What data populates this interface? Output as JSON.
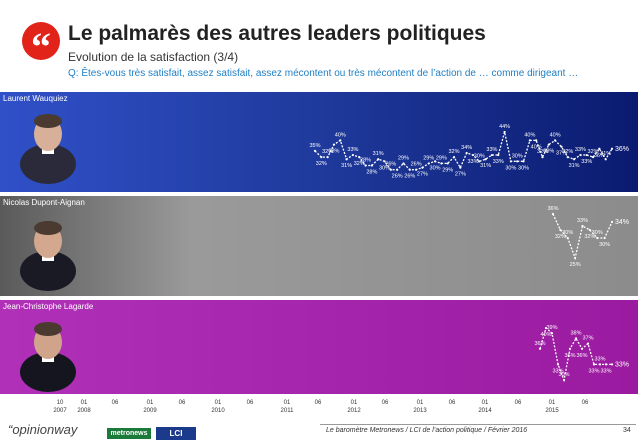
{
  "header": {
    "badge": "“",
    "title": "Le palmarès des autres leaders politiques",
    "subtitle": "Evolution de la satisfaction (3/4)",
    "question": "Q: Êtes-vous très satisfait, assez satisfait, assez mécontent ou très mécontent de l’action de … comme dirigeant …"
  },
  "colors": {
    "panel1": "#1f3a9c",
    "panel2": "#8a8a8a",
    "panel3": "#a020a6",
    "line": "#ffffff"
  },
  "chart_data": [
    {
      "type": "line",
      "name": "Laurent Wauquiez",
      "values": [
        35,
        32,
        32,
        38,
        40,
        31,
        33,
        32,
        28,
        28,
        31,
        30,
        26,
        26,
        29,
        26,
        26,
        27,
        29,
        30,
        29,
        29,
        32,
        27,
        34,
        33,
        30,
        31,
        33,
        33,
        44,
        30,
        30,
        30,
        40,
        40,
        32,
        38,
        40,
        37,
        32,
        31,
        33,
        33,
        32,
        36,
        31,
        36
      ],
      "labels": [
        "35%",
        "32%",
        "32%",
        "38%",
        "40%",
        "31%",
        "33%",
        "32%",
        "28%",
        "28%",
        "31%",
        "30%",
        "26%",
        "26%",
        "29%",
        "26%",
        "26%",
        "27%",
        "29%",
        "30%",
        "29%",
        "29%",
        "32%",
        "27%",
        "34%",
        "33%",
        "30%",
        "31%",
        "33%",
        "33%",
        "44%",
        "30%",
        "30%",
        "30%",
        "40%",
        "40%",
        "32%",
        "38%",
        "40%",
        "37%",
        "32%",
        "31%",
        "33%",
        "33%",
        "32%",
        "36%",
        "31%",
        "36%"
      ]
    },
    {
      "type": "line",
      "name": "Nicolas Dupont-Aignan",
      "values": [
        36,
        32,
        30,
        25,
        33,
        32,
        30,
        30,
        34
      ],
      "labels": [
        "36%",
        "32%",
        "30%",
        "25%",
        "33%",
        "32%",
        "30%",
        "30%",
        "34%"
      ]
    },
    {
      "type": "line",
      "name": "Jean-Christophe Lagarde",
      "values": [
        36,
        40,
        39,
        33,
        30,
        36,
        38,
        36,
        37,
        33,
        33,
        33,
        33
      ],
      "labels": [
        "36%",
        "40%",
        "39%",
        "33%",
        "30%",
        "36%",
        "38%",
        "36%",
        "37%",
        "33%",
        "33%",
        "33%",
        "33%"
      ]
    }
  ],
  "x_axis": {
    "ticks": [
      {
        "l1": "10",
        "l2": "2007"
      },
      {
        "l1": "01",
        "l2": "2008"
      },
      {
        "l1": "06",
        "l2": ""
      },
      {
        "l1": "01",
        "l2": "2009"
      },
      {
        "l1": "06",
        "l2": ""
      },
      {
        "l1": "01",
        "l2": "2010"
      },
      {
        "l1": "06",
        "l2": ""
      },
      {
        "l1": "01",
        "l2": "2011"
      },
      {
        "l1": "06",
        "l2": ""
      },
      {
        "l1": "01",
        "l2": "2012"
      },
      {
        "l1": "06",
        "l2": ""
      },
      {
        "l1": "01",
        "l2": "2013"
      },
      {
        "l1": "06",
        "l2": ""
      },
      {
        "l1": "01",
        "l2": "2014"
      },
      {
        "l1": "06",
        "l2": ""
      },
      {
        "l1": "01",
        "l2": "2015"
      },
      {
        "l1": "06",
        "l2": ""
      }
    ]
  },
  "footer": {
    "logo_opinionway": "“opinionway",
    "logo_metronews": "metronews",
    "logo_lci": "LCI",
    "text": "Le baromètre Metronews / LCI de l’action politique / Février 2016",
    "page": "34"
  }
}
